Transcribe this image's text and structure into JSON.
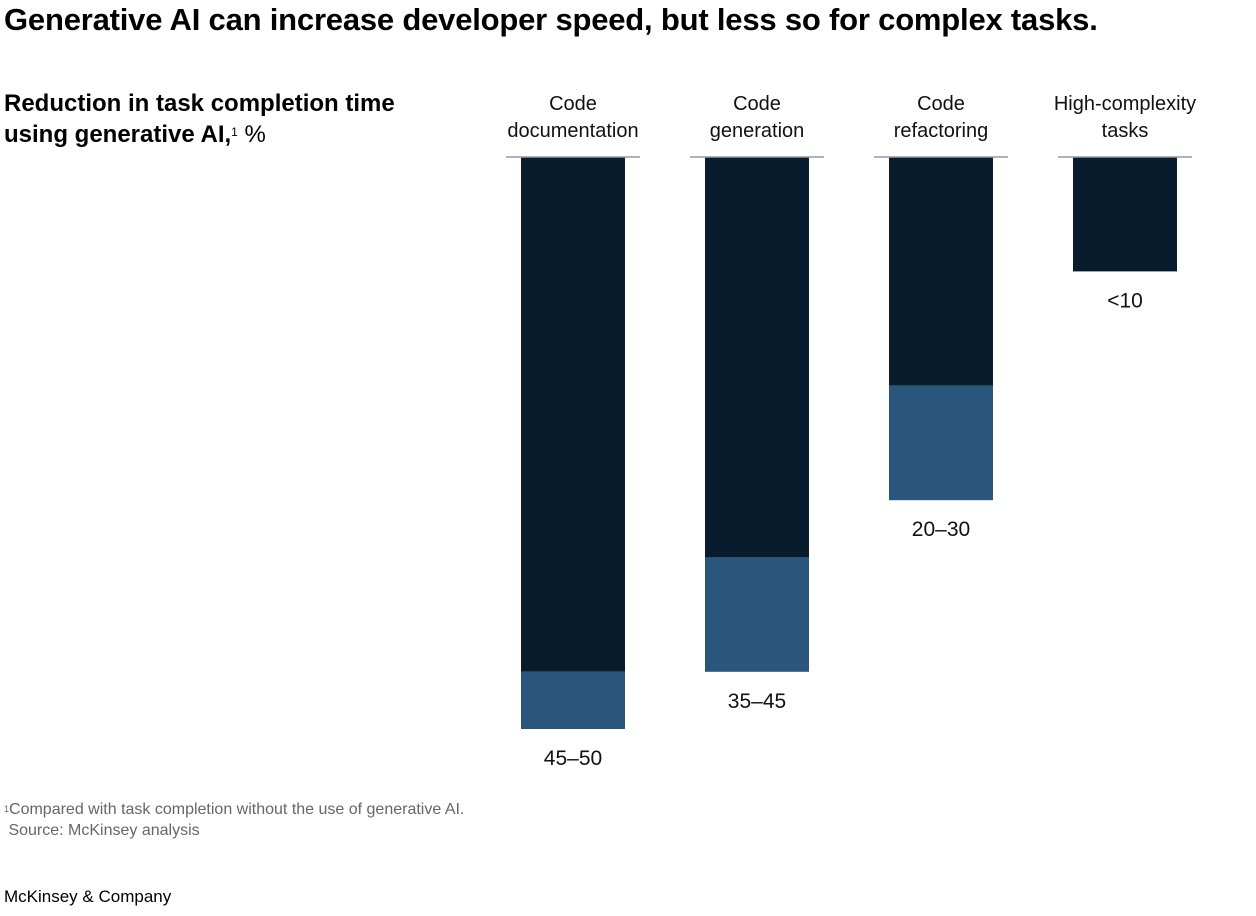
{
  "title": "Generative AI can increase developer speed, but less so for complex tasks.",
  "subtitle": {
    "bold": "Reduction in task completion time using generative AI,",
    "footnote_marker": "1",
    "unit": "%"
  },
  "chart_data": {
    "type": "bar",
    "orientation": "vertical-hanging",
    "categories": [
      "Code documentation",
      "Code generation",
      "Code refactoring",
      "High-complexity tasks"
    ],
    "category_lines": [
      [
        "Code",
        "documentation"
      ],
      [
        "Code",
        "generation"
      ],
      [
        "Code",
        "refactoring"
      ],
      [
        "High-complexity",
        "tasks"
      ]
    ],
    "range_low": [
      45,
      35,
      20,
      0
    ],
    "range_high": [
      50,
      45,
      30,
      10
    ],
    "value_labels": [
      "45–50",
      "35–45",
      "20–30",
      "<10"
    ],
    "ylim": [
      0,
      50
    ],
    "colors": {
      "low": "#071d2d",
      "range": "#2a567e",
      "baseline": "#999999"
    }
  },
  "footnote": {
    "marker": "1",
    "text": "Compared with task completion without the use of generative AI.",
    "source": "Source: McKinsey analysis"
  },
  "brand": "McKinsey & Company"
}
